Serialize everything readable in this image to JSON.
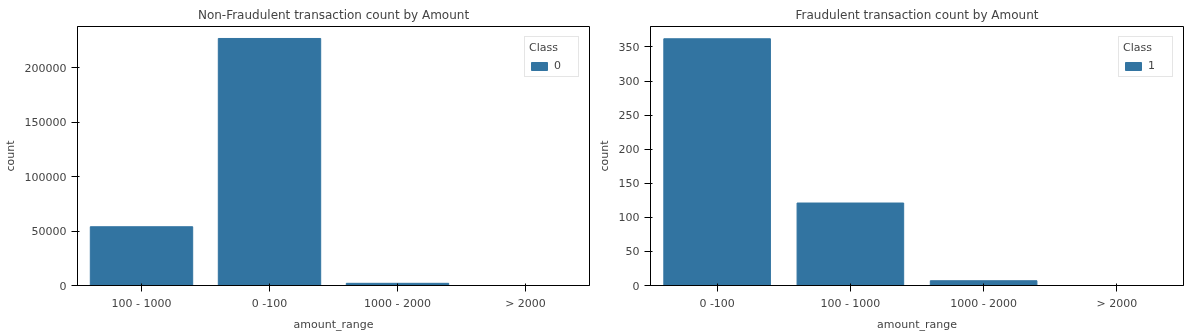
{
  "chart_data": [
    {
      "type": "bar",
      "title": "Non-Fraudulent transaction count by Amount",
      "xlabel": "amount_range",
      "ylabel": "count",
      "legend_title": "Class",
      "categories": [
        "100 - 1000",
        "0 -100",
        "1000 - 2000",
        "> 2000"
      ],
      "series": [
        {
          "name": "0",
          "color": "#3274a1",
          "values": [
            54000,
            227000,
            2000,
            0
          ]
        }
      ],
      "ylim": [
        0,
        238000
      ],
      "yticks": [
        0,
        50000,
        100000,
        150000,
        200000
      ],
      "grid": false,
      "legend": "top right"
    },
    {
      "type": "bar",
      "title": "Fraudulent transaction count by Amount",
      "xlabel": "amount_range",
      "ylabel": "count",
      "legend_title": "Class",
      "categories": [
        "0 -100",
        "100 - 1000",
        "1000 - 2000",
        "> 2000"
      ],
      "series": [
        {
          "name": "1",
          "color": "#3274a1",
          "values": [
            362,
            121,
            7,
            0
          ]
        }
      ],
      "ylim": [
        0,
        380
      ],
      "yticks": [
        0,
        50,
        100,
        150,
        200,
        250,
        300,
        350
      ],
      "grid": false,
      "legend": "top right"
    }
  ]
}
